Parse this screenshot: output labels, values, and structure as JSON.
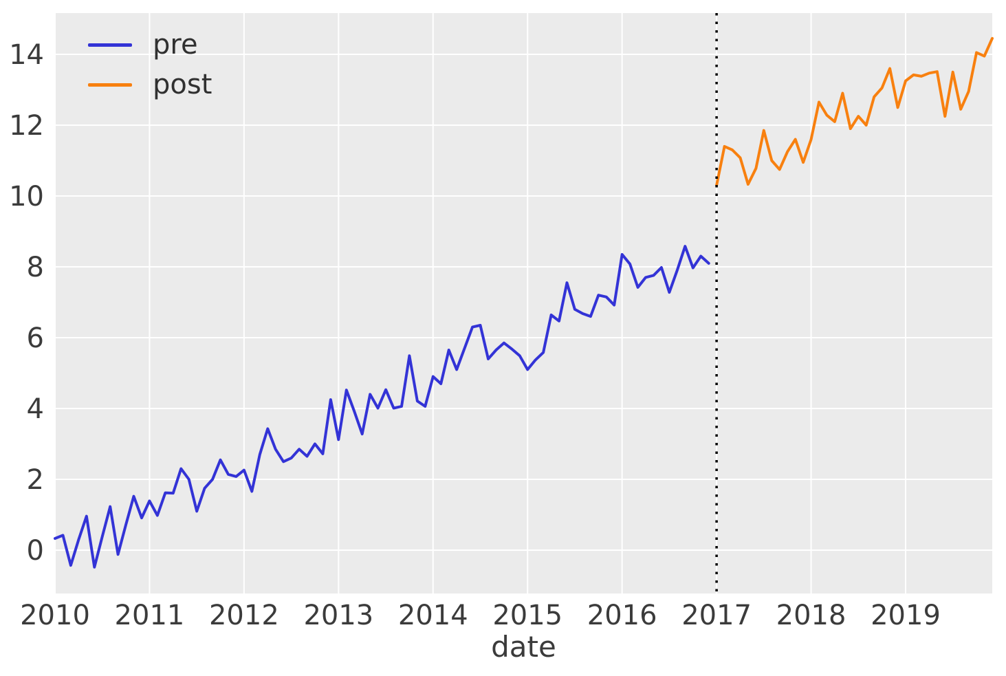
{
  "figure": {
    "background": "#ffffff",
    "plot_background": "#ebebeb",
    "gridline_color": "#ffffff",
    "tick_text_color": "#3b3b3b"
  },
  "chart_data": {
    "type": "line",
    "title": "",
    "xlabel": "date",
    "ylabel": "",
    "grid": true,
    "x_tick_labels": [
      "2010",
      "2011",
      "2012",
      "2013",
      "2014",
      "2015",
      "2016",
      "2017",
      "2018",
      "2019"
    ],
    "y_tick_labels": [
      "0",
      "2",
      "4",
      "6",
      "8",
      "10",
      "12",
      "14"
    ],
    "y_ticks": [
      0,
      2,
      4,
      6,
      8,
      10,
      12,
      14
    ],
    "ylim": [
      -1.25,
      15.2
    ],
    "xlim": [
      "2010-01",
      "2019-12"
    ],
    "freq": "monthly",
    "legend": {
      "position": "upper-left",
      "entries": [
        "pre",
        "post"
      ],
      "frame": false
    },
    "intervention_line": {
      "x": "2017-01",
      "style": "dotted",
      "color": "#000000"
    },
    "series": [
      {
        "name": "pre",
        "color": "#3333d6",
        "start": "2010-01",
        "values": [
          0.33,
          0.42,
          -0.43,
          0.3,
          0.96,
          -0.48,
          0.38,
          1.23,
          -0.12,
          0.72,
          1.52,
          0.91,
          1.39,
          0.98,
          1.62,
          1.61,
          2.3,
          2.0,
          1.1,
          1.75,
          2.0,
          2.55,
          2.14,
          2.08,
          2.26,
          1.66,
          2.7,
          3.43,
          2.85,
          2.5,
          2.6,
          2.85,
          2.65,
          3.0,
          2.72,
          4.25,
          3.12,
          4.52,
          3.92,
          3.28,
          4.4,
          4.01,
          4.53,
          4.01,
          4.06,
          5.49,
          4.21,
          4.06,
          4.9,
          4.7,
          5.65,
          5.1,
          5.7,
          6.3,
          6.35,
          5.4,
          5.65,
          5.85,
          5.68,
          5.49,
          5.1,
          5.37,
          5.58,
          6.64,
          6.47,
          7.55,
          6.8,
          6.68,
          6.6,
          7.2,
          7.15,
          6.92,
          8.35,
          8.08,
          7.42,
          7.7,
          7.76,
          7.98,
          7.28,
          7.9,
          8.58,
          7.97,
          8.3,
          8.1
        ]
      },
      {
        "name": "post",
        "color": "#f8800f",
        "start": "2017-01",
        "values": [
          10.3,
          11.4,
          11.3,
          11.08,
          10.33,
          10.78,
          11.85,
          11.0,
          10.75,
          11.25,
          11.6,
          10.95,
          11.6,
          12.65,
          12.28,
          12.1,
          12.9,
          11.9,
          12.25,
          12.0,
          12.8,
          13.05,
          13.6,
          12.5,
          13.25,
          13.42,
          13.38,
          13.47,
          13.51,
          12.25,
          13.5,
          12.45,
          12.95,
          14.05,
          13.95,
          14.45
        ]
      }
    ]
  }
}
